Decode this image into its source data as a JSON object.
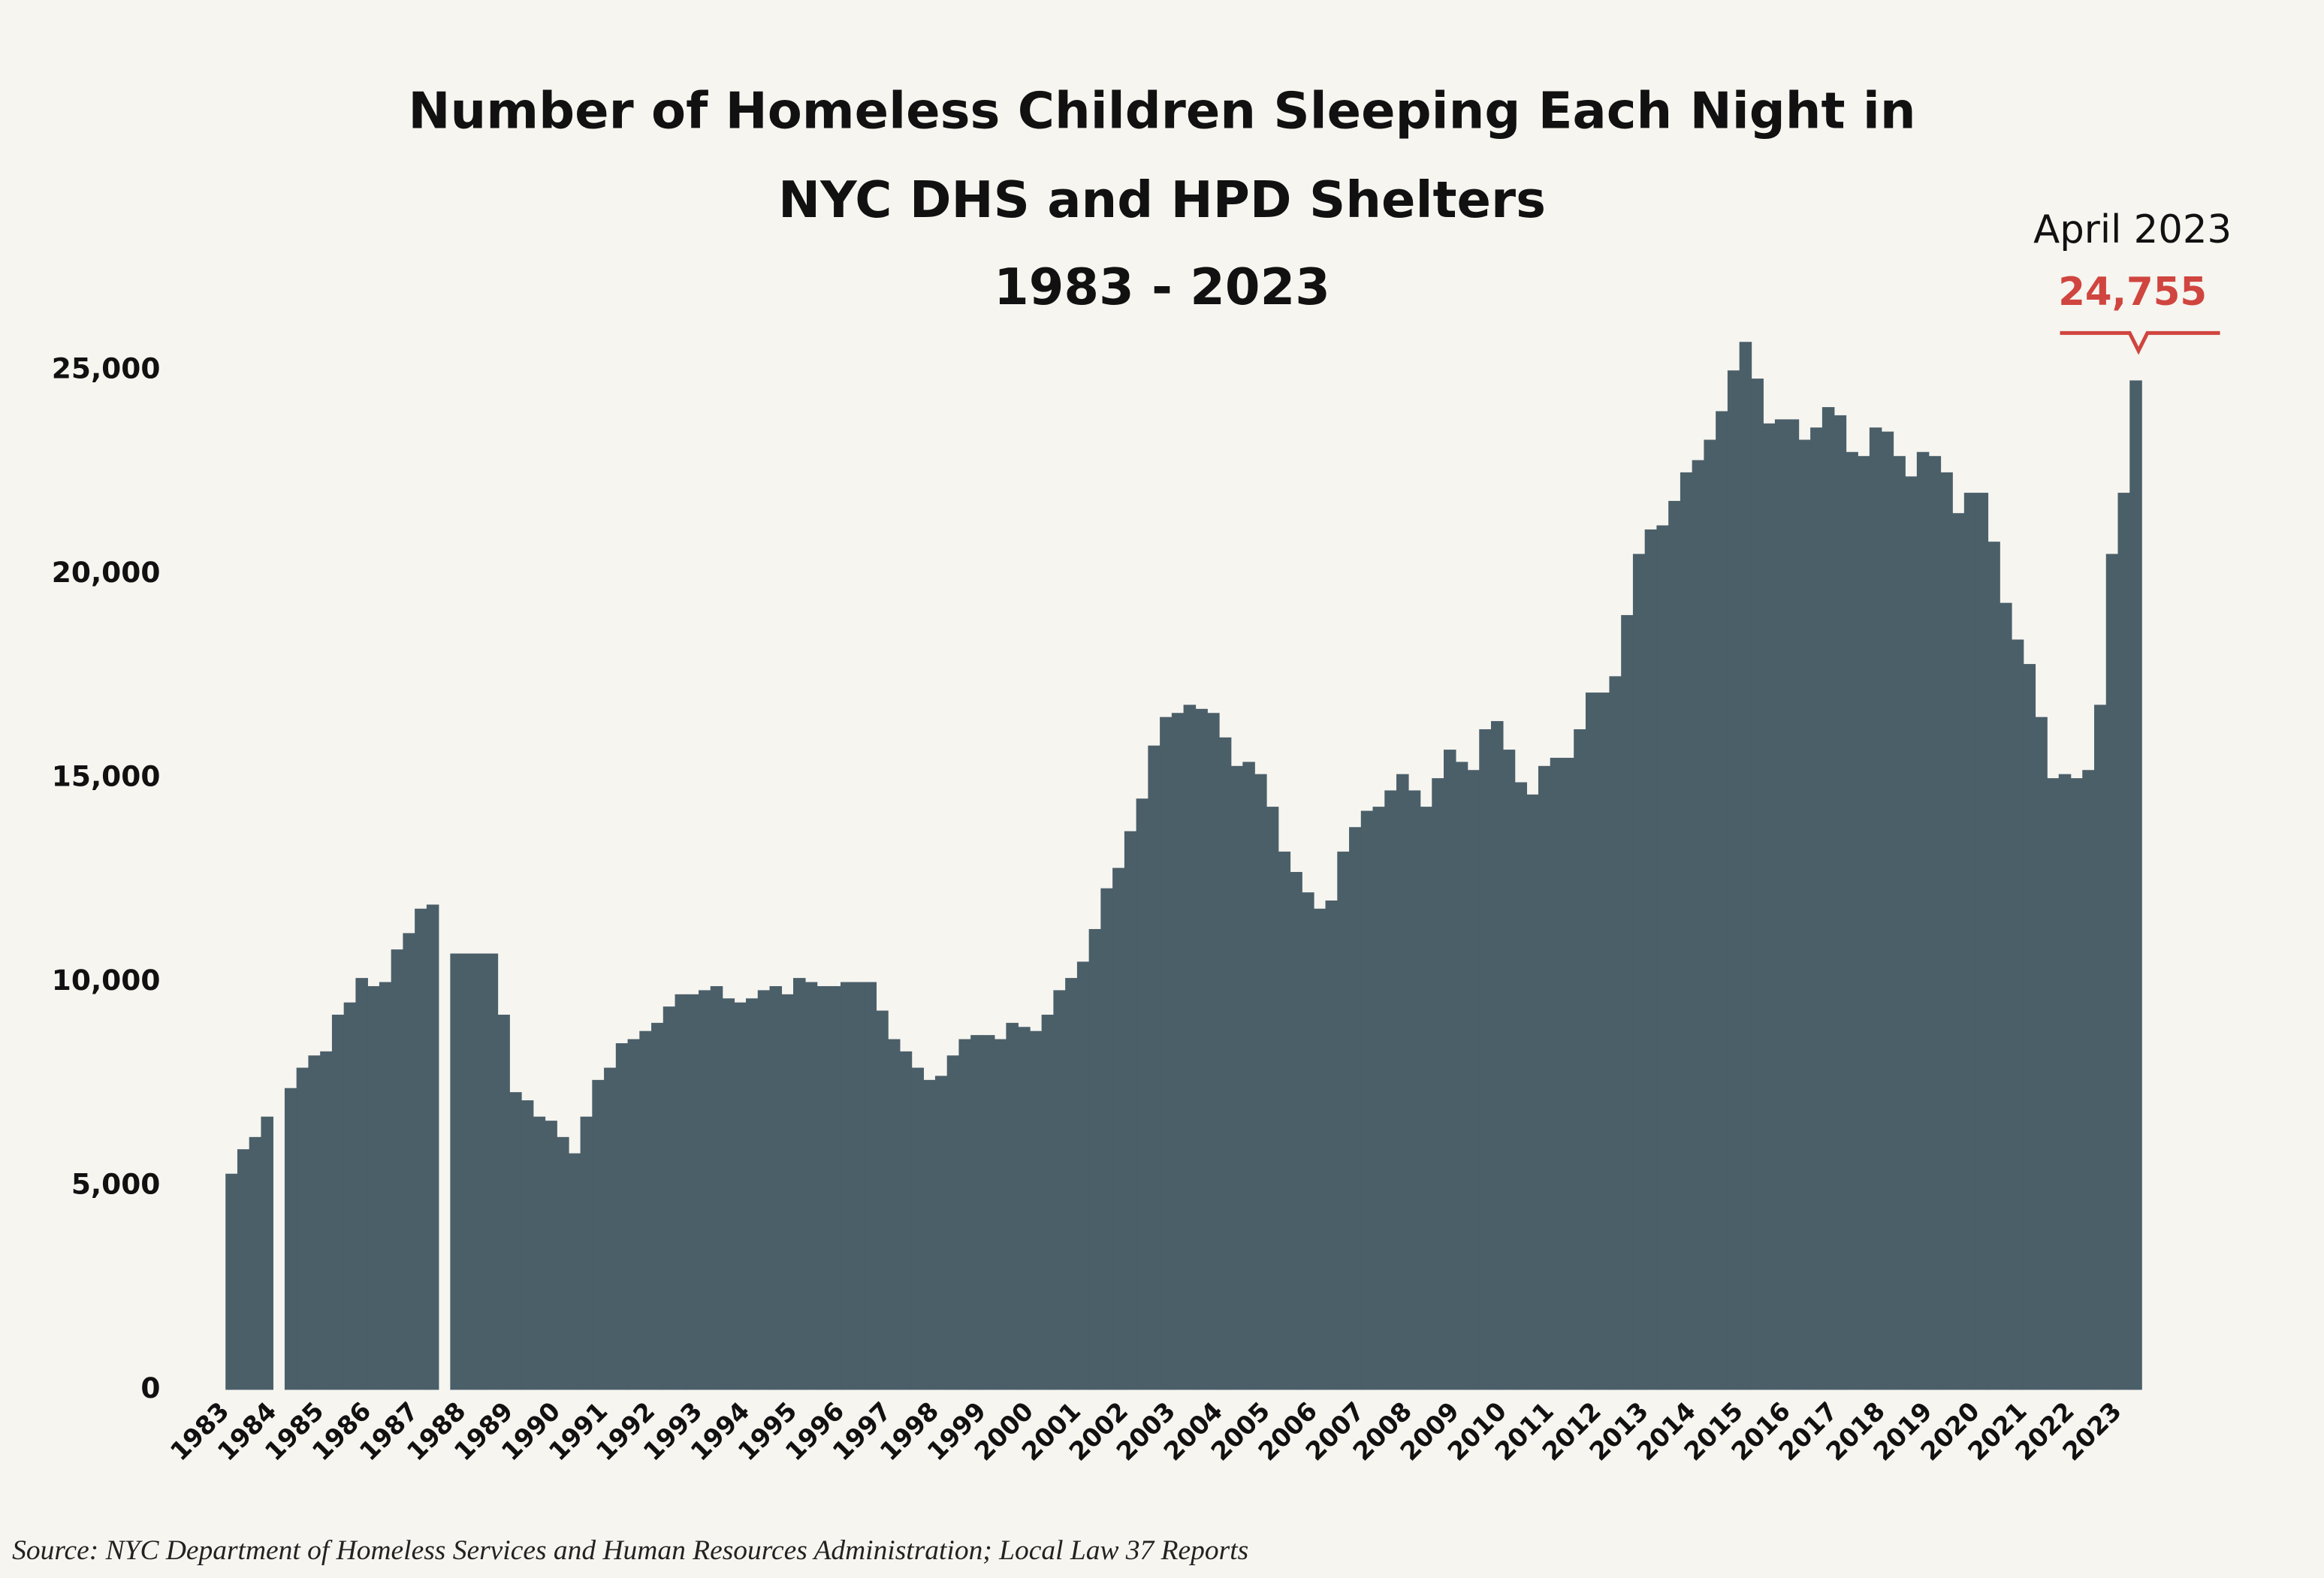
{
  "chart_data": {
    "type": "bar",
    "title": [
      "Number of Homeless Children Sleeping Each Night in",
      "NYC DHS and HPD Shelters",
      "1983 - 2023"
    ],
    "annotation": {
      "text": "April 2023",
      "value": 24755,
      "label": "24,755",
      "color": "#d0453f"
    },
    "source": "Source:  NYC Department of Homeless Services and Human Resources Administration; Local Law 37 Reports",
    "color": "#4b5f69",
    "x": [
      1983,
      1983.25,
      1983.5,
      1983.75,
      1984,
      1984.25,
      1984.5,
      1984.75,
      1985,
      1985.25,
      1985.5,
      1985.75,
      1986,
      1986.25,
      1986.5,
      1986.75,
      1987,
      1987.25,
      1987.5,
      1987.75,
      1988,
      1988.25,
      1988.5,
      1988.75,
      1989,
      1989.25,
      1989.5,
      1989.75,
      1990,
      1990.25,
      1990.5,
      1990.75,
      1991,
      1991.25,
      1991.5,
      1991.75,
      1992,
      1992.25,
      1992.5,
      1992.75,
      1993,
      1993.25,
      1993.5,
      1993.75,
      1994,
      1994.25,
      1994.5,
      1994.75,
      1995,
      1995.25,
      1995.5,
      1995.75,
      1996,
      1996.25,
      1996.5,
      1996.75,
      1997,
      1997.25,
      1997.5,
      1997.75,
      1998,
      1998.25,
      1998.5,
      1998.75,
      1999,
      1999.25,
      1999.5,
      1999.75,
      2000,
      2000.25,
      2000.5,
      2000.75,
      2001,
      2001.25,
      2001.5,
      2001.75,
      2002,
      2002.25,
      2002.5,
      2002.75,
      2003,
      2003.25,
      2003.5,
      2003.75,
      2004,
      2004.25,
      2004.5,
      2004.75,
      2005,
      2005.25,
      2005.5,
      2005.75,
      2006,
      2006.25,
      2006.5,
      2006.75,
      2007,
      2007.25,
      2007.5,
      2007.75,
      2008,
      2008.25,
      2008.5,
      2008.75,
      2009,
      2009.25,
      2009.5,
      2009.75,
      2010,
      2010.25,
      2010.5,
      2010.75,
      2011,
      2011.25,
      2011.5,
      2011.75,
      2012,
      2012.25,
      2012.5,
      2012.75,
      2013,
      2013.25,
      2013.5,
      2013.75,
      2014,
      2014.25,
      2014.5,
      2014.75,
      2015,
      2015.25,
      2015.5,
      2015.75,
      2016,
      2016.25,
      2016.5,
      2016.75,
      2017,
      2017.25,
      2017.5,
      2017.75,
      2018,
      2018.25,
      2018.5,
      2018.75,
      2019,
      2019.25,
      2019.5,
      2019.75,
      2020,
      2020.25,
      2020.5,
      2020.75,
      2021,
      2021.25,
      2021.5,
      2021.75,
      2022,
      2022.25,
      2022.5,
      2022.75,
      2023,
      2023.25
    ],
    "values": [
      5300,
      5900,
      6200,
      6700,
      null,
      7400,
      7900,
      8200,
      8300,
      9200,
      9500,
      10100,
      9900,
      10000,
      10800,
      11200,
      11800,
      11900,
      null,
      10700,
      10700,
      10700,
      10700,
      9200,
      7300,
      7100,
      6700,
      6600,
      6200,
      5800,
      6700,
      7600,
      7900,
      8500,
      8600,
      8800,
      9000,
      9400,
      9700,
      9700,
      9800,
      9900,
      9600,
      9500,
      9600,
      9800,
      9900,
      9700,
      10100,
      10000,
      9900,
      9900,
      10000,
      10000,
      10000,
      9300,
      8600,
      8300,
      7900,
      7600,
      7700,
      8200,
      8600,
      8700,
      8700,
      8600,
      9000,
      8900,
      8800,
      9200,
      9800,
      10100,
      10500,
      11300,
      12300,
      12800,
      13700,
      14500,
      15800,
      16500,
      16600,
      16800,
      16700,
      16600,
      16000,
      15300,
      15400,
      15100,
      14300,
      13200,
      12700,
      12200,
      11800,
      12000,
      13200,
      13800,
      14200,
      14300,
      14700,
      15100,
      14700,
      14300,
      15000,
      15700,
      15400,
      15200,
      16200,
      16400,
      15700,
      14900,
      14600,
      15300,
      15500,
      15500,
      16200,
      17100,
      17100,
      17500,
      19000,
      20500,
      21100,
      21200,
      21800,
      22500,
      22800,
      23300,
      24000,
      25000,
      25700,
      24800,
      23700,
      23800,
      23800,
      23300,
      23600,
      24100,
      23900,
      23000,
      22900,
      23600,
      23500,
      22900,
      22400,
      23000,
      22900,
      22500,
      21500,
      22000,
      22000,
      20800,
      19300,
      18400,
      17800,
      16500,
      15000,
      15100,
      15000,
      15200,
      16800,
      20500,
      22000,
      24755
    ],
    "xlim": [
      1983,
      2023.5
    ],
    "xticks": [
      1983,
      1984,
      1985,
      1986,
      1987,
      1988,
      1989,
      1990,
      1991,
      1992,
      1993,
      1994,
      1995,
      1996,
      1997,
      1998,
      1999,
      2000,
      2001,
      2002,
      2003,
      2004,
      2005,
      2006,
      2007,
      2008,
      2009,
      2010,
      2011,
      2012,
      2013,
      2014,
      2015,
      2016,
      2017,
      2018,
      2019,
      2020,
      2021,
      2022,
      2023
    ],
    "ylim": [
      0,
      25000
    ],
    "yticks": [
      0,
      {
        "value": 5000,
        "label": "5,000"
      },
      {
        "value": 10000,
        "label": "10,000"
      },
      {
        "value": 15000,
        "label": "15,000"
      },
      {
        "value": 20000,
        "label": "20,000"
      },
      {
        "value": 25000,
        "label": "25,000"
      }
    ]
  }
}
